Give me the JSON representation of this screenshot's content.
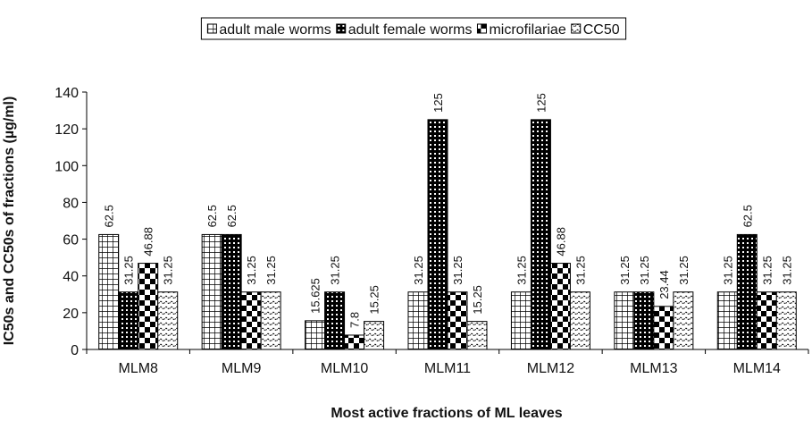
{
  "chart_data": {
    "type": "bar",
    "xlabel": "Most active fractions of ML leaves",
    "ylabel": "IC50s and CC50s of fractions (µg/ml)",
    "categories": [
      "MLM8",
      "MLM9",
      "MLM10",
      "MLM11",
      "MLM12",
      "MLM13",
      "MLM14"
    ],
    "series": [
      {
        "name": "adult male worms",
        "color": "#000000",
        "pattern": "grid",
        "values": [
          62.5,
          62.5,
          15.625,
          31.25,
          31.25,
          31.25,
          31.25
        ]
      },
      {
        "name": "adult female worms",
        "color": "#000000",
        "pattern": "dots",
        "values": [
          31.25,
          62.5,
          31.25,
          125,
          125,
          31.25,
          62.5
        ]
      },
      {
        "name": "microfilariae",
        "color": "#000000",
        "pattern": "checker",
        "values": [
          46.88,
          31.25,
          7.8,
          31.25,
          46.88,
          23.44,
          31.25
        ]
      },
      {
        "name": "CC50",
        "color": "#000000",
        "pattern": "wave",
        "values": [
          31.25,
          31.25,
          15.25,
          15.25,
          31.25,
          31.25,
          31.25
        ]
      }
    ],
    "ylim": [
      0,
      140
    ],
    "yticks": [
      0,
      20,
      40,
      60,
      80,
      100,
      120,
      140
    ],
    "grid": false,
    "legend": "top"
  }
}
